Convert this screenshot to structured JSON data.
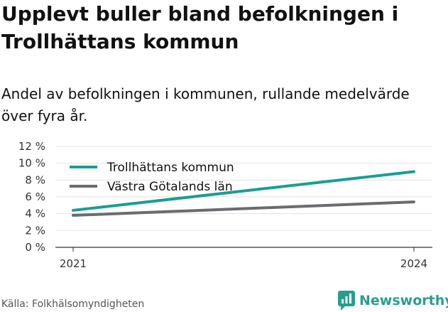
{
  "title": "Upplevt buller bland befolkningen i Trollhättans kommun",
  "subtitle": "Andel av befolkningen i kommunen, rullande medelvärde över fyra år.",
  "source": "Källa: Folkhälsomyndigheten",
  "brand": {
    "name": "Newsworthy",
    "icon": "newsworthy-logo-icon",
    "color": "#2a9d8f"
  },
  "chart_data": {
    "type": "line",
    "x": [
      "2021",
      "2024"
    ],
    "series": [
      {
        "name": "Trollhättans kommun",
        "color": "#1a9e94",
        "values": [
          4.4,
          9.0
        ]
      },
      {
        "name": "Västra Götalands län",
        "color": "#6b6b70",
        "values": [
          3.8,
          5.4
        ]
      }
    ],
    "y_ticks": [
      "0 %",
      "2 %",
      "4 %",
      "6 %",
      "8 %",
      "10 %",
      "12 %"
    ],
    "ylim": [
      0,
      12
    ],
    "grid": true,
    "legend_position": "top-left"
  }
}
